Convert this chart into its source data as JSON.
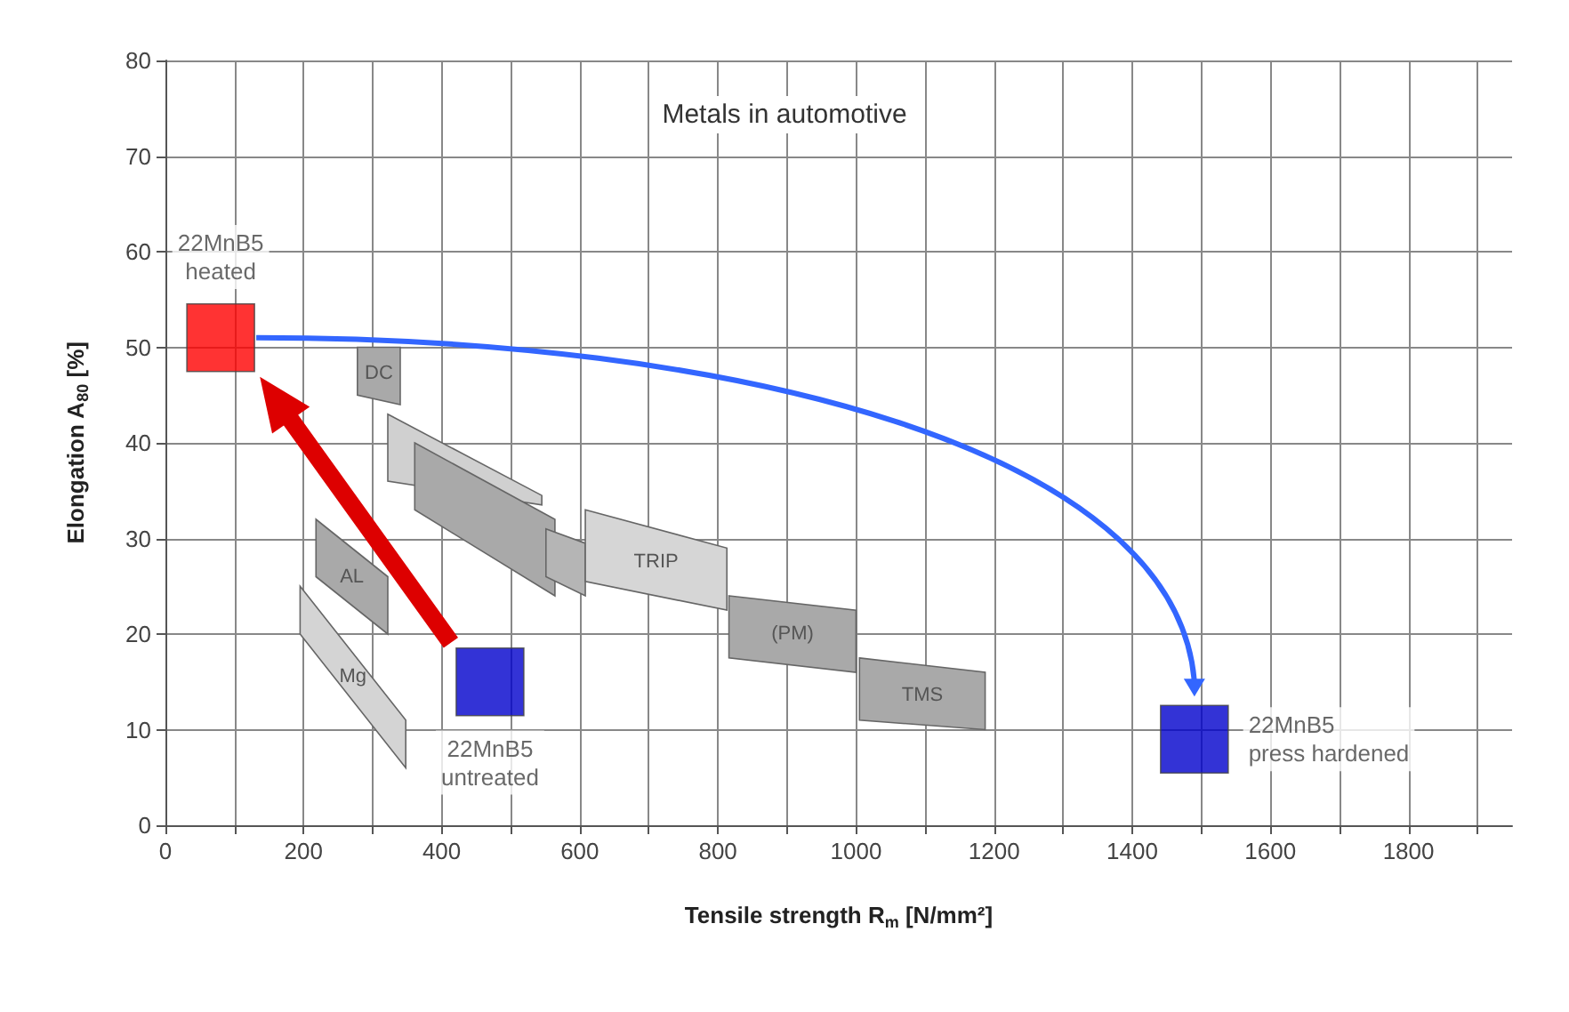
{
  "chart_data": {
    "type": "scatter",
    "title": "Metals in automotive",
    "xlabel": "Tensile strength R$_{m}$ [N/mm²]",
    "ylabel": "Elongation A$_{80}$ [%]",
    "xlim": [
      0,
      1950
    ],
    "ylim": [
      0,
      80
    ],
    "xticks": [
      0,
      {
        "value": 100,
        "label": null
      },
      200,
      {
        "value": 300,
        "label": null
      },
      400,
      {
        "value": 500,
        "label": null
      },
      600,
      {
        "value": 700,
        "label": null
      },
      800,
      {
        "value": 900,
        "label": null
      },
      1000,
      {
        "value": 1100,
        "label": null
      },
      1200,
      {
        "value": 1300,
        "label": null
      },
      1400,
      {
        "value": 1500,
        "label": null
      },
      1600,
      {
        "value": 1700,
        "label": null
      },
      1800,
      {
        "value": 1900,
        "label": null
      }
    ],
    "yticks": [
      0,
      10,
      20,
      30,
      40,
      50,
      60,
      70,
      80
    ],
    "grid": true,
    "legend": false,
    "series": [
      {
        "type": "area",
        "name": "Mg",
        "color": "#d4d4d4",
        "x": [
          195,
          348,
          348,
          195
        ],
        "values": [
          25,
          11,
          6,
          20
        ]
      },
      {
        "type": "area",
        "name": "AL",
        "color": "#a9a9a9",
        "x": [
          218,
          322,
          322,
          218
        ],
        "values": [
          32,
          26,
          20,
          26
        ]
      },
      {
        "type": "area",
        "color": "#d0d0d0",
        "x": [
          322,
          545,
          545,
          322
        ],
        "values": [
          43,
          34.5,
          33.5,
          36
        ]
      },
      {
        "type": "area",
        "color": "#a9a9a9",
        "x": [
          361,
          564,
          564,
          361
        ],
        "values": [
          40,
          32,
          24,
          33
        ]
      },
      {
        "type": "area",
        "color": "#b5b5b5",
        "x": [
          551,
          608,
          608,
          551
        ],
        "values": [
          31,
          29.5,
          24,
          26
        ]
      },
      {
        "type": "area",
        "name": "DC",
        "color": "#a9a9a9",
        "x": [
          278,
          340,
          340,
          278
        ],
        "values": [
          50,
          50,
          44,
          45
        ]
      },
      {
        "type": "area",
        "name": "TRIP",
        "color": "#d6d6d6",
        "x": [
          608,
          813,
          813,
          608
        ],
        "values": [
          33,
          29,
          22.5,
          25.5
        ]
      },
      {
        "type": "area",
        "name": "(PM)",
        "color": "#a9a9a9",
        "x": [
          816,
          1000,
          1000,
          816
        ],
        "values": [
          24,
          22.5,
          16,
          17.5
        ]
      },
      {
        "type": "area",
        "name": "TMS",
        "color": "#a9a9a9",
        "x": [
          1005,
          1187,
          1187,
          1005
        ],
        "values": [
          17.5,
          16,
          10,
          11
        ]
      },
      {
        "type": "scatter",
        "name": "22MnB5\nheated",
        "color": "#ff0000",
        "marker": "square",
        "x": [
          80
        ],
        "values": [
          51
        ]
      },
      {
        "type": "scatter",
        "name": "22MnB5\nuntreated",
        "color": "#0000cc",
        "marker": "square",
        "x": [
          470
        ],
        "values": [
          15
        ]
      },
      {
        "type": "scatter",
        "name": "22MnB5\npress hardened",
        "color": "#0000cc",
        "marker": "square",
        "x": [
          1490
        ],
        "values": [
          9
        ]
      }
    ]
  }
}
